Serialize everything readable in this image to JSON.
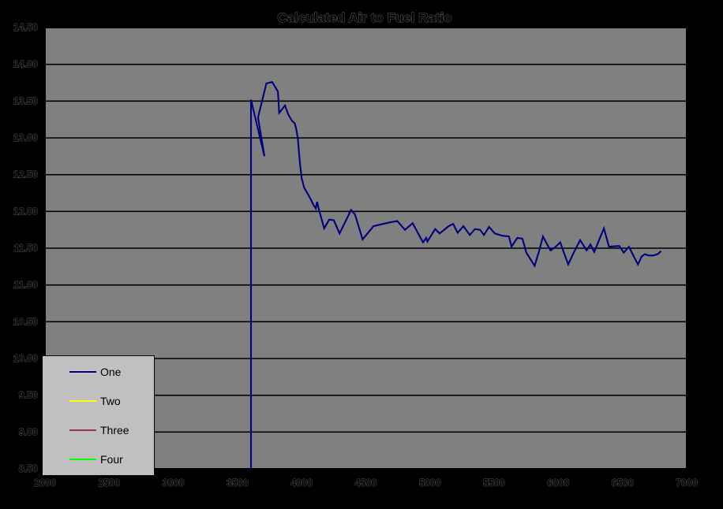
{
  "title": "Calculated Air to Fuel Ratio",
  "colors": {
    "canvas_bg": "#000000",
    "plot_bg": "#808080",
    "legend_bg": "#C0C0C0",
    "gridline": "#000000",
    "text": "#000000",
    "series_one": "#000080",
    "series_two": "#FFFF00",
    "series_three": "#993366",
    "series_four": "#00FF00"
  },
  "legend": {
    "items": [
      {
        "label": "One",
        "color": "#000080"
      },
      {
        "label": "Two",
        "color": "#FFFF00"
      },
      {
        "label": "Three",
        "color": "#993366"
      },
      {
        "label": "Four",
        "color": "#00FF00"
      }
    ]
  },
  "chart_data": {
    "type": "line",
    "title": "Calculated Air to Fuel Ratio",
    "xlabel": "",
    "ylabel": "",
    "grid": true,
    "legend_position": "overlay-bottom-left",
    "plot_background": "gray",
    "x_axis": {
      "min": 2000,
      "max": 7000,
      "tick_step": 500,
      "ticks": [
        "2000",
        "2500",
        "3000",
        "3500",
        "4000",
        "4500",
        "5000",
        "5500",
        "6000",
        "6500",
        "7000"
      ]
    },
    "y_axis": {
      "min": 8.5,
      "max": 14.5,
      "tick_step": 0.5,
      "ticks": [
        "14.50",
        "14.00",
        "13.50",
        "13.00",
        "12.50",
        "12.00",
        "11.50",
        "11.00",
        "10.50",
        "10.00",
        "9.50",
        "9.00",
        "8.50"
      ]
    },
    "series": [
      {
        "name": "One",
        "color": "#000080",
        "points": [
          [
            3605,
            8.5
          ],
          [
            3605,
            13.52
          ],
          [
            3710,
            12.75
          ],
          [
            3660,
            13.28
          ],
          [
            3725,
            13.74
          ],
          [
            3770,
            13.76
          ],
          [
            3815,
            13.63
          ],
          [
            3825,
            13.34
          ],
          [
            3870,
            13.44
          ],
          [
            3895,
            13.32
          ],
          [
            3925,
            13.23
          ],
          [
            3945,
            13.2
          ],
          [
            3955,
            13.14
          ],
          [
            3970,
            13.0
          ],
          [
            3985,
            12.68
          ],
          [
            4000,
            12.45
          ],
          [
            4020,
            12.32
          ],
          [
            4060,
            12.2
          ],
          [
            4095,
            12.08
          ],
          [
            4110,
            12.04
          ],
          [
            4120,
            12.13
          ],
          [
            4135,
            12.02
          ],
          [
            4175,
            11.77
          ],
          [
            4215,
            11.89
          ],
          [
            4250,
            11.88
          ],
          [
            4295,
            11.7
          ],
          [
            4385,
            12.02
          ],
          [
            4415,
            11.96
          ],
          [
            4475,
            11.62
          ],
          [
            4560,
            11.8
          ],
          [
            4685,
            11.85
          ],
          [
            4745,
            11.87
          ],
          [
            4805,
            11.75
          ],
          [
            4865,
            11.84
          ],
          [
            4920,
            11.66
          ],
          [
            4945,
            11.58
          ],
          [
            4970,
            11.64
          ],
          [
            4980,
            11.59
          ],
          [
            5040,
            11.76
          ],
          [
            5075,
            11.7
          ],
          [
            5145,
            11.8
          ],
          [
            5180,
            11.83
          ],
          [
            5215,
            11.71
          ],
          [
            5260,
            11.8
          ],
          [
            5310,
            11.68
          ],
          [
            5350,
            11.76
          ],
          [
            5390,
            11.75
          ],
          [
            5420,
            11.68
          ],
          [
            5460,
            11.79
          ],
          [
            5505,
            11.7
          ],
          [
            5560,
            11.67
          ],
          [
            5615,
            11.66
          ],
          [
            5635,
            11.52
          ],
          [
            5680,
            11.64
          ],
          [
            5720,
            11.63
          ],
          [
            5750,
            11.44
          ],
          [
            5815,
            11.26
          ],
          [
            5850,
            11.46
          ],
          [
            5880,
            11.66
          ],
          [
            5910,
            11.56
          ],
          [
            5940,
            11.47
          ],
          [
            5980,
            11.52
          ],
          [
            6015,
            11.58
          ],
          [
            6045,
            11.43
          ],
          [
            6077,
            11.28
          ],
          [
            6120,
            11.44
          ],
          [
            6170,
            11.61
          ],
          [
            6220,
            11.47
          ],
          [
            6250,
            11.55
          ],
          [
            6280,
            11.45
          ],
          [
            6315,
            11.6
          ],
          [
            6355,
            11.77
          ],
          [
            6395,
            11.52
          ],
          [
            6475,
            11.53
          ],
          [
            6510,
            11.44
          ],
          [
            6550,
            11.52
          ],
          [
            6590,
            11.38
          ],
          [
            6620,
            11.28
          ],
          [
            6650,
            11.39
          ],
          [
            6675,
            11.42
          ],
          [
            6705,
            11.4
          ],
          [
            6740,
            11.4
          ],
          [
            6775,
            11.42
          ],
          [
            6800,
            11.46
          ]
        ]
      },
      {
        "name": "Two",
        "color": "#FFFF00",
        "points": []
      },
      {
        "name": "Three",
        "color": "#993366",
        "points": []
      },
      {
        "name": "Four",
        "color": "#00FF00",
        "points": []
      }
    ]
  }
}
